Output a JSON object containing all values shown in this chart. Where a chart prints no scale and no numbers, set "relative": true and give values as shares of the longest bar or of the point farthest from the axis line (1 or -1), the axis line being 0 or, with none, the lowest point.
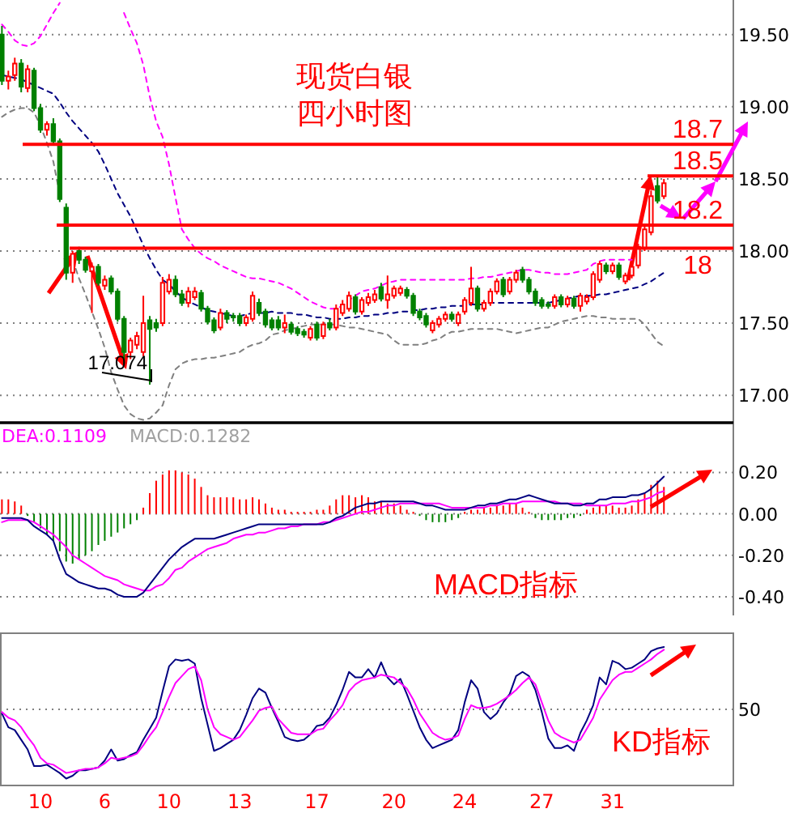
{
  "chart_data": [
    {
      "type": "candlestick",
      "title": "现货白银",
      "subtitle": "四小时图",
      "categories": [
        null,
        null,
        null,
        null,
        null,
        null,
        null,
        null,
        null,
        null,
        null,
        null,
        null,
        null,
        null,
        null,
        null,
        null,
        null,
        null,
        null,
        null,
        null,
        null,
        null,
        null,
        null,
        null,
        null,
        null,
        null,
        null,
        null,
        null,
        null,
        null,
        null,
        null,
        null,
        null,
        null,
        null,
        null,
        null,
        null,
        null,
        null,
        null,
        null,
        null,
        null,
        null,
        null,
        null,
        null,
        null,
        null,
        null,
        null,
        null,
        null,
        null,
        null,
        null,
        null,
        null,
        null,
        null,
        null,
        null,
        null,
        null,
        null,
        null,
        null,
        null,
        null,
        null,
        null,
        null,
        null,
        null,
        null,
        null,
        null,
        null,
        null,
        null,
        null,
        null,
        null,
        null,
        null,
        null,
        null,
        null,
        null,
        null,
        null,
        null,
        null,
        null,
        null,
        null
      ],
      "ohlc": [
        [
          19.5,
          19.56,
          19.15,
          19.18
        ],
        [
          19.18,
          19.25,
          19.12,
          19.21
        ],
        [
          19.22,
          19.34,
          19.18,
          19.3
        ],
        [
          19.3,
          19.33,
          19.1,
          19.14
        ],
        [
          19.13,
          19.29,
          19.1,
          19.26
        ],
        [
          19.25,
          19.27,
          18.97,
          18.99
        ],
        [
          18.99,
          19.02,
          18.82,
          18.84
        ],
        [
          18.84,
          18.9,
          18.8,
          18.88
        ],
        [
          18.88,
          18.92,
          18.74,
          18.76
        ],
        [
          18.76,
          18.78,
          18.34,
          18.36
        ],
        [
          18.3,
          18.33,
          17.8,
          17.85
        ],
        [
          17.85,
          18.0,
          17.78,
          17.98
        ],
        [
          18.0,
          18.03,
          17.91,
          17.94
        ],
        [
          17.94,
          17.96,
          17.85,
          17.87
        ],
        [
          17.86,
          17.92,
          17.57,
          17.89
        ],
        [
          17.89,
          17.91,
          17.76,
          17.78
        ],
        [
          17.76,
          17.83,
          17.73,
          17.8
        ],
        [
          17.81,
          17.83,
          17.7,
          17.72
        ],
        [
          17.72,
          17.74,
          17.51,
          17.53
        ],
        [
          17.53,
          17.55,
          17.22,
          17.3
        ],
        [
          17.3,
          17.4,
          17.25,
          17.38
        ],
        [
          17.35,
          17.44,
          17.32,
          17.41
        ],
        [
          17.3,
          17.69,
          17.27,
          17.5
        ],
        [
          17.52,
          17.55,
          17.074,
          17.46
        ],
        [
          17.5,
          17.53,
          17.44,
          17.47
        ],
        [
          17.5,
          17.82,
          17.48,
          17.78
        ],
        [
          17.72,
          17.84,
          17.7,
          17.8
        ],
        [
          17.8,
          17.83,
          17.68,
          17.7
        ],
        [
          17.7,
          17.73,
          17.62,
          17.64
        ],
        [
          17.64,
          17.75,
          17.61,
          17.72
        ],
        [
          17.68,
          17.75,
          17.66,
          17.72
        ],
        [
          17.71,
          17.73,
          17.58,
          17.6
        ],
        [
          17.6,
          17.62,
          17.49,
          17.51
        ],
        [
          17.52,
          17.54,
          17.43,
          17.45
        ],
        [
          17.47,
          17.6,
          17.45,
          17.57
        ],
        [
          17.57,
          17.59,
          17.5,
          17.53
        ],
        [
          17.55,
          17.57,
          17.51,
          17.54
        ],
        [
          17.55,
          17.57,
          17.48,
          17.5
        ],
        [
          17.5,
          17.56,
          17.48,
          17.54
        ],
        [
          17.53,
          17.72,
          17.51,
          17.69
        ],
        [
          17.64,
          17.67,
          17.55,
          17.57
        ],
        [
          17.58,
          17.6,
          17.47,
          17.49
        ],
        [
          17.52,
          17.54,
          17.45,
          17.47
        ],
        [
          17.52,
          17.55,
          17.45,
          17.47
        ],
        [
          17.47,
          17.56,
          17.43,
          17.5
        ],
        [
          17.49,
          17.51,
          17.42,
          17.44
        ],
        [
          17.46,
          17.48,
          17.41,
          17.43
        ],
        [
          17.44,
          17.46,
          17.4,
          17.42
        ],
        [
          17.4,
          17.48,
          17.38,
          17.46
        ],
        [
          17.49,
          17.51,
          17.38,
          17.4
        ],
        [
          17.41,
          17.51,
          17.39,
          17.49
        ],
        [
          17.5,
          17.53,
          17.45,
          17.47
        ],
        [
          17.47,
          17.63,
          17.45,
          17.6
        ],
        [
          17.57,
          17.66,
          17.55,
          17.63
        ],
        [
          17.6,
          17.72,
          17.58,
          17.69
        ],
        [
          17.68,
          17.7,
          17.56,
          17.58
        ],
        [
          17.58,
          17.68,
          17.56,
          17.66
        ],
        [
          17.64,
          17.71,
          17.62,
          17.68
        ],
        [
          17.66,
          17.73,
          17.64,
          17.7
        ],
        [
          17.75,
          17.78,
          17.65,
          17.67
        ],
        [
          17.66,
          17.83,
          17.6,
          17.7
        ],
        [
          17.69,
          17.76,
          17.67,
          17.74
        ],
        [
          17.71,
          17.76,
          17.69,
          17.74
        ],
        [
          17.73,
          17.75,
          17.67,
          17.69
        ],
        [
          17.69,
          17.71,
          17.55,
          17.57
        ],
        [
          17.58,
          17.6,
          17.52,
          17.54
        ],
        [
          17.55,
          17.57,
          17.47,
          17.49
        ],
        [
          17.45,
          17.52,
          17.43,
          17.5
        ],
        [
          17.49,
          17.55,
          17.47,
          17.53
        ],
        [
          17.53,
          17.58,
          17.51,
          17.56
        ],
        [
          17.56,
          17.58,
          17.51,
          17.53
        ],
        [
          17.5,
          17.58,
          17.48,
          17.56
        ],
        [
          17.58,
          17.68,
          17.56,
          17.66
        ],
        [
          17.64,
          17.89,
          17.62,
          17.74
        ],
        [
          17.74,
          17.76,
          17.58,
          17.6
        ],
        [
          17.6,
          17.66,
          17.58,
          17.64
        ],
        [
          17.64,
          17.74,
          17.62,
          17.72
        ],
        [
          17.72,
          17.81,
          17.7,
          17.79
        ],
        [
          17.8,
          17.82,
          17.68,
          17.7
        ],
        [
          17.72,
          17.82,
          17.7,
          17.8
        ],
        [
          17.8,
          17.87,
          17.78,
          17.85
        ],
        [
          17.87,
          17.89,
          17.78,
          17.8
        ],
        [
          17.8,
          17.82,
          17.7,
          17.72
        ],
        [
          17.72,
          17.74,
          17.62,
          17.64
        ],
        [
          17.66,
          17.68,
          17.6,
          17.62
        ],
        [
          17.63,
          17.65,
          17.6,
          17.62
        ],
        [
          17.62,
          17.7,
          17.6,
          17.68
        ],
        [
          17.68,
          17.7,
          17.61,
          17.63
        ],
        [
          17.63,
          17.69,
          17.61,
          17.67
        ],
        [
          17.67,
          17.69,
          17.6,
          17.62
        ],
        [
          17.62,
          17.71,
          17.58,
          17.69
        ],
        [
          17.65,
          17.7,
          17.63,
          17.68
        ],
        [
          17.68,
          17.86,
          17.66,
          17.84
        ],
        [
          17.8,
          17.93,
          17.78,
          17.91
        ],
        [
          17.9,
          17.92,
          17.84,
          17.86
        ],
        [
          17.86,
          17.92,
          17.84,
          17.9
        ],
        [
          17.9,
          17.92,
          17.8,
          17.82
        ],
        [
          17.79,
          17.85,
          17.77,
          17.83
        ],
        [
          17.83,
          17.91,
          17.81,
          17.89
        ],
        [
          17.9,
          18.05,
          17.88,
          18.03
        ],
        [
          18.02,
          18.17,
          18.0,
          18.15
        ],
        [
          18.13,
          18.42,
          18.11,
          18.38
        ],
        [
          18.45,
          18.52,
          18.33,
          18.35
        ],
        [
          18.38,
          18.5,
          18.36,
          18.47
        ]
      ],
      "colors": [
        "#008000",
        "#ff0000",
        "#ff0000",
        "#008000",
        "#ff0000",
        "#008000",
        "#008000",
        "#ff0000",
        "#008000",
        "#008000",
        "#008000",
        "#ff0000",
        "#008000",
        "#008000",
        "#ff0000",
        "#008000",
        "#ff0000",
        "#008000",
        "#008000",
        "#008000",
        "#ff0000",
        "#ff0000",
        "#ff0000",
        "#008000",
        "#008000",
        "#ff0000",
        "#ff0000",
        "#008000",
        "#008000",
        "#ff0000",
        "#ff0000",
        "#008000",
        "#008000",
        "#008000",
        "#ff0000",
        "#008000",
        "#008000",
        "#008000",
        "#ff0000",
        "#ff0000",
        "#008000",
        "#008000",
        "#008000",
        "#008000",
        "#ff0000",
        "#008000",
        "#008000",
        "#008000",
        "#ff0000",
        "#008000",
        "#ff0000",
        "#008000",
        "#ff0000",
        "#ff0000",
        "#ff0000",
        "#008000",
        "#ff0000",
        "#ff0000",
        "#ff0000",
        "#008000",
        "#ff0000",
        "#ff0000",
        "#ff0000",
        "#008000",
        "#008000",
        "#008000",
        "#008000",
        "#ff0000",
        "#ff0000",
        "#ff0000",
        "#008000",
        "#ff0000",
        "#ff0000",
        "#ff0000",
        "#008000",
        "#ff0000",
        "#ff0000",
        "#ff0000",
        "#008000",
        "#ff0000",
        "#ff0000",
        "#008000",
        "#008000",
        "#008000",
        "#008000",
        "#008000",
        "#ff0000",
        "#008000",
        "#ff0000",
        "#008000",
        "#ff0000",
        "#ff0000",
        "#ff0000",
        "#ff0000",
        "#008000",
        "#ff0000",
        "#008000",
        "#ff0000",
        "#ff0000",
        "#ff0000",
        "#ff0000",
        "#ff0000",
        "#008000",
        "#ff0000"
      ],
      "series": [
        {
          "type": "line",
          "color": "#ff00ff",
          "line_style": "dashed",
          "values": [
            19.57,
            19.52,
            19.46,
            19.43,
            19.42,
            19.44,
            19.49,
            19.57,
            19.65,
            19.72,
            null,
            null,
            null,
            null,
            null,
            null,
            null,
            null,
            null,
            19.65,
            19.54,
            19.44,
            19.29,
            19.07,
            18.9,
            18.79,
            18.6,
            18.37,
            18.15,
            18.08,
            18.02,
            17.98,
            17.95,
            17.93,
            17.9,
            17.88,
            17.86,
            17.84,
            17.82,
            17.81,
            17.81,
            17.8,
            17.79,
            17.78,
            17.76,
            17.74,
            17.71,
            17.68,
            17.65,
            17.63,
            17.61,
            17.6,
            17.6,
            17.62,
            17.66,
            17.69,
            17.72,
            17.73,
            17.74,
            17.76,
            17.78,
            17.79,
            17.8,
            17.8,
            17.8,
            17.8,
            17.8,
            17.8,
            17.8,
            17.8,
            17.8,
            17.8,
            17.8,
            17.81,
            17.81,
            17.82,
            17.82,
            17.83,
            17.84,
            17.85,
            17.86,
            17.87,
            17.87,
            17.86,
            17.85,
            17.85,
            17.84,
            17.84,
            17.84,
            17.85,
            17.86,
            17.87,
            17.91,
            17.93,
            17.94,
            17.94,
            17.94,
            17.94,
            17.94,
            null,
            null,
            null,
            null,
            null
          ]
        },
        {
          "type": "line",
          "color": "#000080",
          "line_style": "dashed",
          "values": [
            19.22,
            19.21,
            19.2,
            19.19,
            19.17,
            19.15,
            19.13,
            19.11,
            19.09,
            19.03,
            18.96,
            18.9,
            18.85,
            18.8,
            18.75,
            18.69,
            18.6,
            18.5,
            18.4,
            18.32,
            18.24,
            18.14,
            18.04,
            17.95,
            17.87,
            17.8,
            17.77,
            17.72,
            17.68,
            17.65,
            17.63,
            17.61,
            17.59,
            17.58,
            17.57,
            17.56,
            17.55,
            17.55,
            17.56,
            17.57,
            17.57,
            17.57,
            17.58,
            17.57,
            17.57,
            17.57,
            17.56,
            17.56,
            17.55,
            17.54,
            17.54,
            17.53,
            17.53,
            17.53,
            17.54,
            17.54,
            17.55,
            17.55,
            17.56,
            17.56,
            17.57,
            17.57,
            17.58,
            17.58,
            17.59,
            17.59,
            17.6,
            17.6,
            17.61,
            17.61,
            17.62,
            17.62,
            17.62,
            17.63,
            17.63,
            17.63,
            17.64,
            17.64,
            17.64,
            17.64,
            17.64,
            17.64,
            17.64,
            17.64,
            17.64,
            17.64,
            17.65,
            17.66,
            17.67,
            17.68,
            17.69,
            17.69,
            17.69,
            17.7,
            17.7,
            17.71,
            17.72,
            17.73,
            17.74,
            17.75,
            17.77,
            17.79,
            17.82,
            17.85
          ]
        },
        {
          "type": "line",
          "color": "#808080",
          "line_style": "dashed",
          "values": [
            18.93,
            18.96,
            18.98,
            18.99,
            18.99,
            18.96,
            18.87,
            18.75,
            18.62,
            18.39,
            null,
            17.94,
            17.81,
            17.7,
            17.58,
            17.46,
            17.33,
            17.16,
            17.04,
            16.93,
            16.87,
            16.84,
            16.83,
            16.84,
            16.88,
            16.93,
            17.07,
            17.18,
            17.22,
            17.24,
            17.25,
            17.25,
            17.26,
            17.26,
            17.27,
            17.28,
            17.29,
            17.3,
            17.33,
            17.35,
            17.36,
            17.38,
            17.42,
            17.43,
            17.45,
            17.46,
            17.47,
            17.48,
            17.49,
            17.49,
            17.49,
            17.49,
            17.49,
            17.48,
            17.47,
            17.47,
            17.46,
            17.45,
            17.44,
            17.43,
            17.42,
            17.38,
            17.35,
            17.35,
            17.35,
            17.35,
            17.36,
            17.38,
            17.39,
            17.42,
            17.44,
            17.44,
            17.45,
            17.46,
            17.46,
            17.46,
            17.46,
            17.46,
            17.45,
            17.44,
            17.43,
            17.44,
            17.45,
            17.46,
            17.47,
            17.47,
            17.49,
            17.51,
            17.52,
            17.53,
            17.54,
            17.55,
            17.55,
            17.54,
            17.54,
            17.53,
            17.53,
            17.53,
            17.53,
            17.53,
            17.49,
            17.43,
            17.37,
            17.34
          ]
        }
      ],
      "ylim": [
        16.81,
        19.74
      ],
      "yticks": [
        {
          "value": 17,
          "label": "17.00"
        },
        {
          "value": 17.5,
          "label": "17.50"
        },
        {
          "value": 18,
          "label": "18.00"
        },
        {
          "value": 18.5,
          "label": "18.50"
        },
        {
          "value": 19,
          "label": "19.00"
        },
        {
          "value": 19.5,
          "label": "19.50"
        }
      ],
      "grid": "y",
      "ref_lines": [
        {
          "axis": "y",
          "value": 18.74,
          "label": "18.7",
          "color": "#ff0000"
        },
        {
          "axis": "y",
          "value": 18.52,
          "label": "18.5",
          "color": "#ff0000"
        },
        {
          "axis": "y",
          "value": 18.18,
          "label": "18.2",
          "color": "#ff0000"
        },
        {
          "axis": "y",
          "value": 18.02,
          "label": "18",
          "color": "#ff0000"
        }
      ],
      "annotations": [
        "17.074"
      ]
    },
    {
      "type": "bar",
      "categories": [
        null,
        null,
        null,
        null,
        null,
        null,
        null,
        null,
        null,
        null,
        null,
        null,
        null,
        null,
        null,
        null,
        null,
        null,
        null,
        null,
        null,
        null,
        null,
        null,
        null,
        null,
        null,
        null,
        null,
        null,
        null,
        null,
        null,
        null,
        null,
        null,
        null,
        null,
        null,
        null,
        null,
        null,
        null,
        null,
        null,
        null,
        null,
        null,
        null,
        null,
        null,
        null,
        null,
        null,
        null,
        null,
        null,
        null,
        null,
        null,
        null,
        null,
        null,
        null,
        null,
        null,
        null,
        null,
        null,
        null,
        null,
        null,
        null,
        null,
        null,
        null,
        null,
        null,
        null,
        null,
        null,
        null,
        null,
        null,
        null,
        null,
        null,
        null,
        null,
        null,
        null,
        null,
        null,
        null,
        null,
        null,
        null,
        null,
        null,
        null,
        null,
        null,
        null,
        null
      ],
      "series": [
        {
          "name": "DEA:0.1109",
          "type": "line",
          "color": "#ff00ff",
          "values": [
            -0.04,
            -0.03,
            -0.03,
            -0.03,
            -0.03,
            -0.04,
            -0.06,
            -0.08,
            -0.1,
            -0.13,
            -0.16,
            -0.2,
            -0.22,
            -0.24,
            -0.26,
            -0.28,
            -0.3,
            -0.31,
            -0.32,
            -0.34,
            -0.35,
            -0.36,
            -0.37,
            -0.37,
            -0.35,
            -0.34,
            -0.31,
            -0.27,
            -0.26,
            -0.23,
            -0.21,
            -0.19,
            -0.17,
            -0.16,
            -0.15,
            -0.14,
            -0.12,
            -0.11,
            -0.1,
            -0.1,
            -0.09,
            -0.09,
            -0.08,
            -0.07,
            -0.07,
            -0.06,
            -0.06,
            -0.05,
            -0.05,
            -0.05,
            -0.04,
            -0.04,
            -0.03,
            -0.02,
            -0.01,
            0.0,
            0.01,
            0.01,
            0.02,
            0.03,
            0.04,
            0.04,
            0.05,
            0.05,
            0.05,
            0.05,
            0.05,
            0.05,
            0.05,
            0.04,
            0.03,
            0.03,
            0.03,
            0.03,
            0.03,
            0.03,
            0.04,
            0.04,
            0.05,
            0.05,
            0.05,
            0.06,
            0.06,
            0.06,
            0.06,
            0.06,
            0.06,
            0.05,
            0.05,
            0.05,
            0.05,
            0.04,
            0.04,
            0.04,
            0.04,
            0.05,
            0.05,
            0.05,
            0.06,
            0.06,
            0.07,
            0.08,
            0.1,
            0.11
          ]
        },
        {
          "type": "line",
          "color": "#000080",
          "values": [
            -0.02,
            -0.02,
            -0.02,
            -0.02,
            -0.03,
            -0.06,
            -0.08,
            -0.1,
            -0.13,
            -0.22,
            -0.29,
            -0.31,
            -0.33,
            -0.34,
            -0.35,
            -0.36,
            -0.36,
            -0.37,
            -0.39,
            -0.4,
            -0.4,
            -0.4,
            -0.38,
            -0.34,
            -0.3,
            -0.26,
            -0.22,
            -0.19,
            -0.16,
            -0.14,
            -0.12,
            -0.12,
            -0.12,
            -0.12,
            -0.11,
            -0.1,
            -0.09,
            -0.08,
            -0.07,
            -0.06,
            -0.05,
            -0.05,
            -0.05,
            -0.05,
            -0.05,
            -0.05,
            -0.05,
            -0.05,
            -0.05,
            -0.05,
            -0.05,
            -0.04,
            -0.02,
            -0.01,
            0.01,
            0.03,
            0.04,
            0.05,
            0.05,
            0.06,
            0.06,
            0.06,
            0.06,
            0.06,
            0.06,
            0.05,
            0.04,
            0.04,
            0.03,
            0.02,
            0.02,
            0.02,
            0.02,
            0.03,
            0.04,
            0.04,
            0.05,
            0.05,
            0.06,
            0.07,
            0.07,
            0.08,
            0.09,
            0.08,
            0.07,
            0.06,
            0.05,
            0.05,
            0.05,
            0.04,
            0.04,
            0.05,
            0.05,
            0.07,
            0.07,
            0.08,
            0.08,
            0.08,
            0.09,
            0.09,
            0.1,
            0.12,
            0.15,
            0.18
          ]
        },
        {
          "name": "MACD:0.1282",
          "type": "bar",
          "colors": [
            "#ff0000",
            "#ff0000",
            "#ff0000",
            "#ff0000",
            "#008000",
            "#008000",
            "#008000",
            "#008000",
            "#008000",
            "#008000",
            "#008000",
            "#008000",
            "#008000",
            "#008000",
            "#008000",
            "#008000",
            "#008000",
            "#008000",
            "#008000",
            "#008000",
            "#008000",
            "#008000",
            "#ff0000",
            "#ff0000",
            "#ff0000",
            "#ff0000",
            "#ff0000",
            "#ff0000",
            "#ff0000",
            "#ff0000",
            "#ff0000",
            "#ff0000",
            "#ff0000",
            "#ff0000",
            "#ff0000",
            "#ff0000",
            "#ff0000",
            "#ff0000",
            "#ff0000",
            "#ff0000",
            "#ff0000",
            "#ff0000",
            "#ff0000",
            "#ff0000",
            "#ff0000",
            "#ff0000",
            "#ff0000",
            "#ff0000",
            "#ff0000",
            "#ff0000",
            "#ff0000",
            "#ff0000",
            "#ff0000",
            "#ff0000",
            "#ff0000",
            "#ff0000",
            "#ff0000",
            "#ff0000",
            "#ff0000",
            "#ff0000",
            "#ff0000",
            "#ff0000",
            "#ff0000",
            "#ff0000",
            "#ff0000",
            "#008000",
            "#008000",
            "#008000",
            "#008000",
            "#008000",
            "#008000",
            "#008000",
            "#ff0000",
            "#ff0000",
            "#ff0000",
            "#ff0000",
            "#ff0000",
            "#ff0000",
            "#ff0000",
            "#ff0000",
            "#ff0000",
            "#ff0000",
            "#ff0000",
            "#008000",
            "#008000",
            "#008000",
            "#008000",
            "#008000",
            "#008000",
            "#008000",
            "#008000",
            "#ff0000",
            "#ff0000",
            "#ff0000",
            "#ff0000",
            "#ff0000",
            "#ff0000",
            "#ff0000",
            "#ff0000",
            "#ff0000",
            "#ff0000",
            "#ff0000",
            "#ff0000",
            "#ff0000"
          ],
          "values": [
            0.07,
            0.07,
            0.06,
            0.04,
            -0.01,
            -0.04,
            -0.07,
            -0.1,
            -0.13,
            -0.18,
            -0.23,
            -0.24,
            -0.22,
            -0.2,
            -0.18,
            -0.15,
            -0.13,
            -0.11,
            -0.09,
            -0.07,
            -0.05,
            -0.03,
            0.03,
            0.1,
            0.16,
            0.19,
            0.21,
            0.21,
            0.2,
            0.19,
            0.17,
            0.13,
            0.09,
            0.08,
            0.08,
            0.08,
            0.08,
            0.07,
            0.07,
            0.08,
            0.07,
            0.05,
            0.03,
            0.02,
            0.02,
            0.01,
            0.01,
            0.01,
            0.01,
            0.02,
            0.02,
            0.04,
            0.07,
            0.09,
            0.09,
            0.08,
            0.09,
            0.08,
            0.06,
            0.06,
            0.05,
            0.05,
            0.04,
            0.02,
            0.01,
            -0.01,
            -0.03,
            -0.04,
            -0.04,
            -0.04,
            -0.03,
            -0.02,
            0.01,
            0.02,
            0.02,
            0.03,
            0.03,
            0.04,
            0.04,
            0.05,
            0.05,
            0.03,
            0.01,
            -0.02,
            -0.03,
            -0.03,
            -0.03,
            -0.03,
            -0.02,
            -0.02,
            -0.01,
            0.02,
            0.03,
            0.04,
            0.04,
            0.04,
            0.03,
            0.03,
            0.04,
            0.07,
            0.1,
            0.14,
            0.16,
            0.13
          ]
        }
      ],
      "ylim": [
        -0.49,
        0.44
      ],
      "yticks": [
        {
          "value": 0.2,
          "label": "0.20"
        },
        {
          "value": 0,
          "label": "0.00"
        },
        {
          "value": -0.2,
          "label": "-0.20"
        },
        {
          "value": -0.4,
          "label": "-0.40"
        }
      ],
      "grid": "y",
      "legend": "top left",
      "annotations": [
        "MACD指标"
      ]
    },
    {
      "type": "line",
      "relative": true,
      "categories": [
        null,
        null,
        null,
        null,
        null,
        null,
        "10",
        null,
        null,
        null,
        null,
        null,
        null,
        null,
        null,
        null,
        "6",
        null,
        null,
        null,
        null,
        null,
        null,
        null,
        null,
        null,
        "10",
        null,
        null,
        null,
        null,
        null,
        null,
        null,
        null,
        null,
        null,
        "13",
        null,
        null,
        null,
        null,
        null,
        null,
        null,
        null,
        null,
        null,
        null,
        "17",
        null,
        null,
        null,
        null,
        null,
        null,
        null,
        null,
        null,
        null,
        null,
        "20",
        null,
        null,
        null,
        null,
        null,
        null,
        null,
        null,
        null,
        null,
        "24",
        null,
        null,
        null,
        null,
        null,
        null,
        null,
        null,
        null,
        null,
        null,
        "27",
        null,
        null,
        null,
        null,
        null,
        null,
        null,
        null,
        null,
        null,
        "31",
        null,
        null,
        null,
        null,
        null,
        null,
        null,
        null
      ],
      "series": [
        {
          "type": "line",
          "color": "#000080",
          "values": [
            0.52,
            0.42,
            0.4,
            0.33,
            0.26,
            0.14,
            0.14,
            0.15,
            0.12,
            0.09,
            0.05,
            0.07,
            0.11,
            0.11,
            0.12,
            0.13,
            0.18,
            0.26,
            0.18,
            0.19,
            0.22,
            0.24,
            0.33,
            0.41,
            0.49,
            0.68,
            0.86,
            0.91,
            0.9,
            0.91,
            0.88,
            0.63,
            0.44,
            0.25,
            0.27,
            0.3,
            0.33,
            0.4,
            0.51,
            0.63,
            0.7,
            0.67,
            0.56,
            0.46,
            0.35,
            0.33,
            0.32,
            0.33,
            0.37,
            0.43,
            0.44,
            0.49,
            0.58,
            0.69,
            0.82,
            0.78,
            0.78,
            0.84,
            0.78,
            0.89,
            0.78,
            0.73,
            0.77,
            0.66,
            0.54,
            0.42,
            0.33,
            0.27,
            0.29,
            0.31,
            0.33,
            0.4,
            0.6,
            0.76,
            0.7,
            0.53,
            0.48,
            0.52,
            0.6,
            0.66,
            0.79,
            0.82,
            0.79,
            0.69,
            0.53,
            0.34,
            0.27,
            0.27,
            0.29,
            0.25,
            0.38,
            0.47,
            0.58,
            0.78,
            0.73,
            0.9,
            0.88,
            0.84,
            0.85,
            0.88,
            0.91,
            0.97,
            0.99,
            1
          ]
        },
        {
          "type": "line",
          "color": "#ff00ff",
          "values": [
            0.53,
            0.49,
            0.47,
            0.42,
            0.35,
            0.29,
            0.2,
            0.16,
            0.15,
            0.12,
            0.09,
            0.1,
            0.11,
            0.12,
            0.12,
            0.13,
            0.16,
            0.2,
            0.19,
            0.2,
            0.21,
            0.23,
            0.29,
            0.36,
            0.42,
            0.53,
            0.64,
            0.74,
            0.79,
            0.84,
            0.86,
            0.76,
            0.55,
            0.42,
            0.37,
            0.35,
            0.33,
            0.35,
            0.41,
            0.47,
            0.54,
            0.56,
            0.57,
            0.48,
            0.43,
            0.38,
            0.37,
            0.37,
            0.37,
            0.4,
            0.41,
            0.47,
            0.52,
            0.58,
            0.68,
            0.73,
            0.76,
            0.77,
            0.78,
            0.8,
            0.79,
            0.78,
            0.74,
            0.7,
            0.62,
            0.52,
            0.45,
            0.38,
            0.35,
            0.33,
            0.34,
            0.36,
            0.48,
            0.58,
            0.56,
            0.56,
            0.57,
            0.59,
            0.62,
            0.65,
            0.69,
            0.74,
            0.78,
            0.73,
            0.6,
            0.47,
            0.38,
            0.35,
            0.33,
            0.31,
            0.33,
            0.41,
            0.49,
            0.62,
            0.69,
            0.76,
            0.8,
            0.82,
            0.82,
            0.85,
            0.88,
            0.91,
            0.95,
            0.98
          ]
        }
      ],
      "ref_lines": [
        {
          "axis": "y",
          "value": 0.55,
          "color": "#808080",
          "line_style": "dotted"
        }
      ],
      "annotations": [
        "50",
        "KD指标"
      ]
    }
  ]
}
